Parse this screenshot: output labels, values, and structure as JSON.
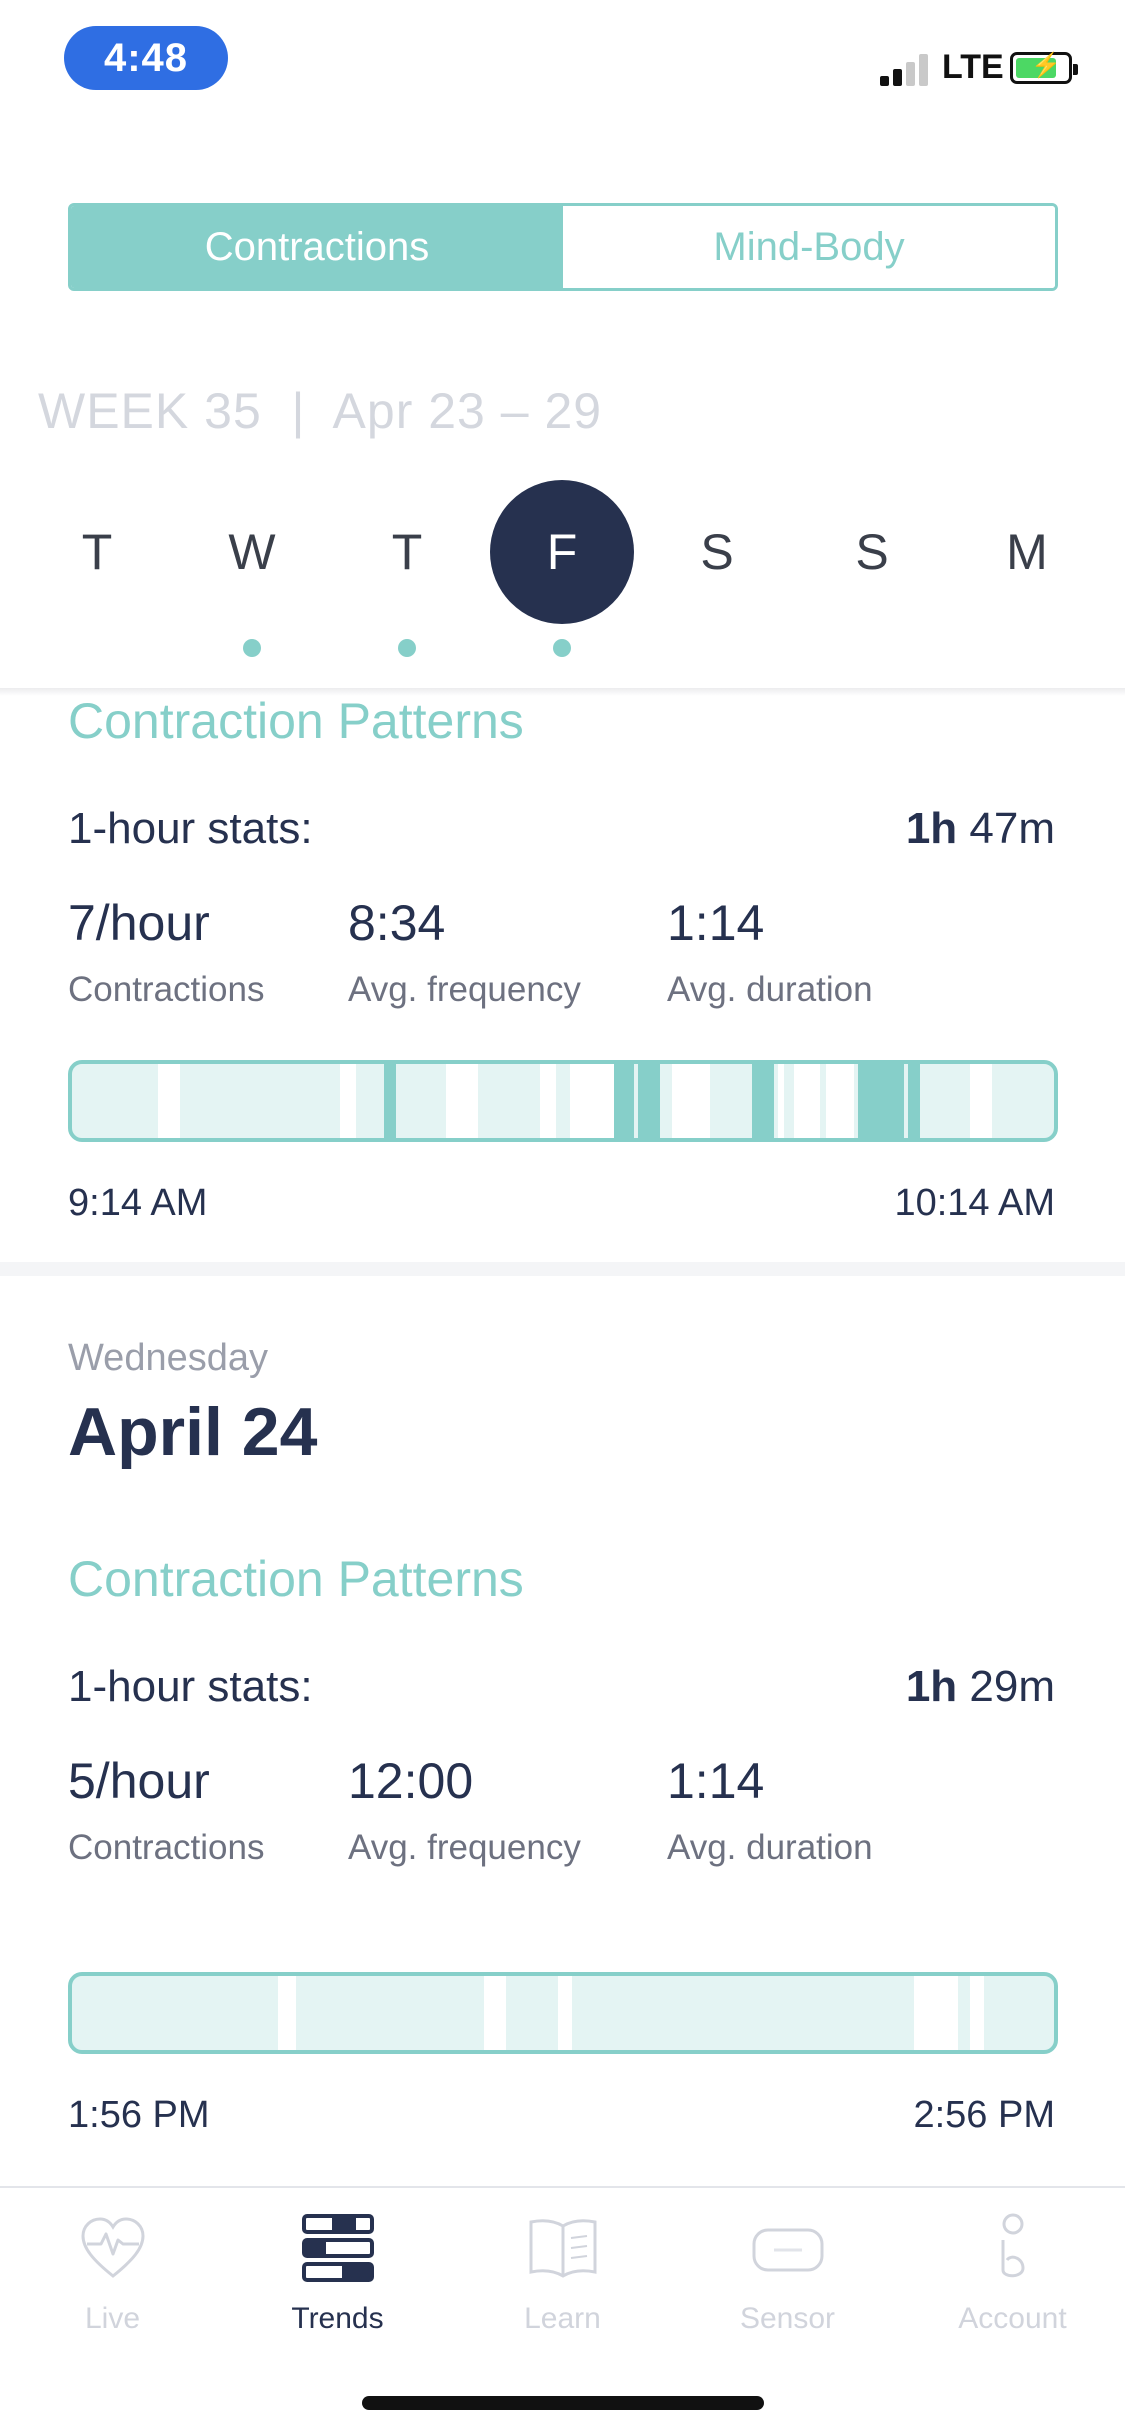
{
  "status_bar": {
    "time": "4:48",
    "network": "LTE",
    "battery_level_percent": 70
  },
  "segmented": {
    "options": [
      "Contractions",
      "Mind-Body"
    ],
    "selected": "Contractions"
  },
  "week": {
    "label": "WEEK 35  |  Apr 23 – 29"
  },
  "days": [
    {
      "letter": "T",
      "has_data": false,
      "selected": false
    },
    {
      "letter": "W",
      "has_data": true,
      "selected": false
    },
    {
      "letter": "T",
      "has_data": true,
      "selected": false
    },
    {
      "letter": "F",
      "has_data": true,
      "selected": true
    },
    {
      "letter": "S",
      "has_data": false,
      "selected": false
    },
    {
      "letter": "S",
      "has_data": false,
      "selected": false
    },
    {
      "letter": "M",
      "has_data": false,
      "selected": false
    }
  ],
  "sessions": [
    {
      "section_title": "Contraction Patterns",
      "stats_label": "1-hour stats:",
      "duration_hours": "1h",
      "duration_minutes": "47m",
      "contractions_value": "7/hour",
      "contractions_label": "Contractions",
      "frequency_value": "8:34",
      "frequency_label": "Avg. frequency",
      "duration_value": "1:14",
      "duration_label": "Avg. duration",
      "start_time": "9:14 AM",
      "end_time": "10:14 AM"
    },
    {
      "weekday": "Wednesday",
      "date": "April 24",
      "section_title": "Contraction Patterns",
      "stats_label": "1-hour stats:",
      "duration_hours": "1h",
      "duration_minutes": "29m",
      "contractions_value": "5/hour",
      "contractions_label": "Contractions",
      "frequency_value": "12:00",
      "frequency_label": "Avg. frequency",
      "duration_value": "1:14",
      "duration_label": "Avg. duration",
      "start_time": "1:56 PM",
      "end_time": "2:56 PM"
    }
  ],
  "tabs": [
    {
      "label": "Live",
      "icon": "heart-pulse-icon",
      "active": false
    },
    {
      "label": "Trends",
      "icon": "trends-icon",
      "active": true
    },
    {
      "label": "Learn",
      "icon": "book-icon",
      "active": false
    },
    {
      "label": "Sensor",
      "icon": "sensor-icon",
      "active": false
    },
    {
      "label": "Account",
      "icon": "account-icon",
      "active": false
    }
  ],
  "colors": {
    "accent": "#86cfc9",
    "navy": "#26314f",
    "timeline_bg": "#e4f4f3",
    "status_pill": "#2f6ee3"
  }
}
